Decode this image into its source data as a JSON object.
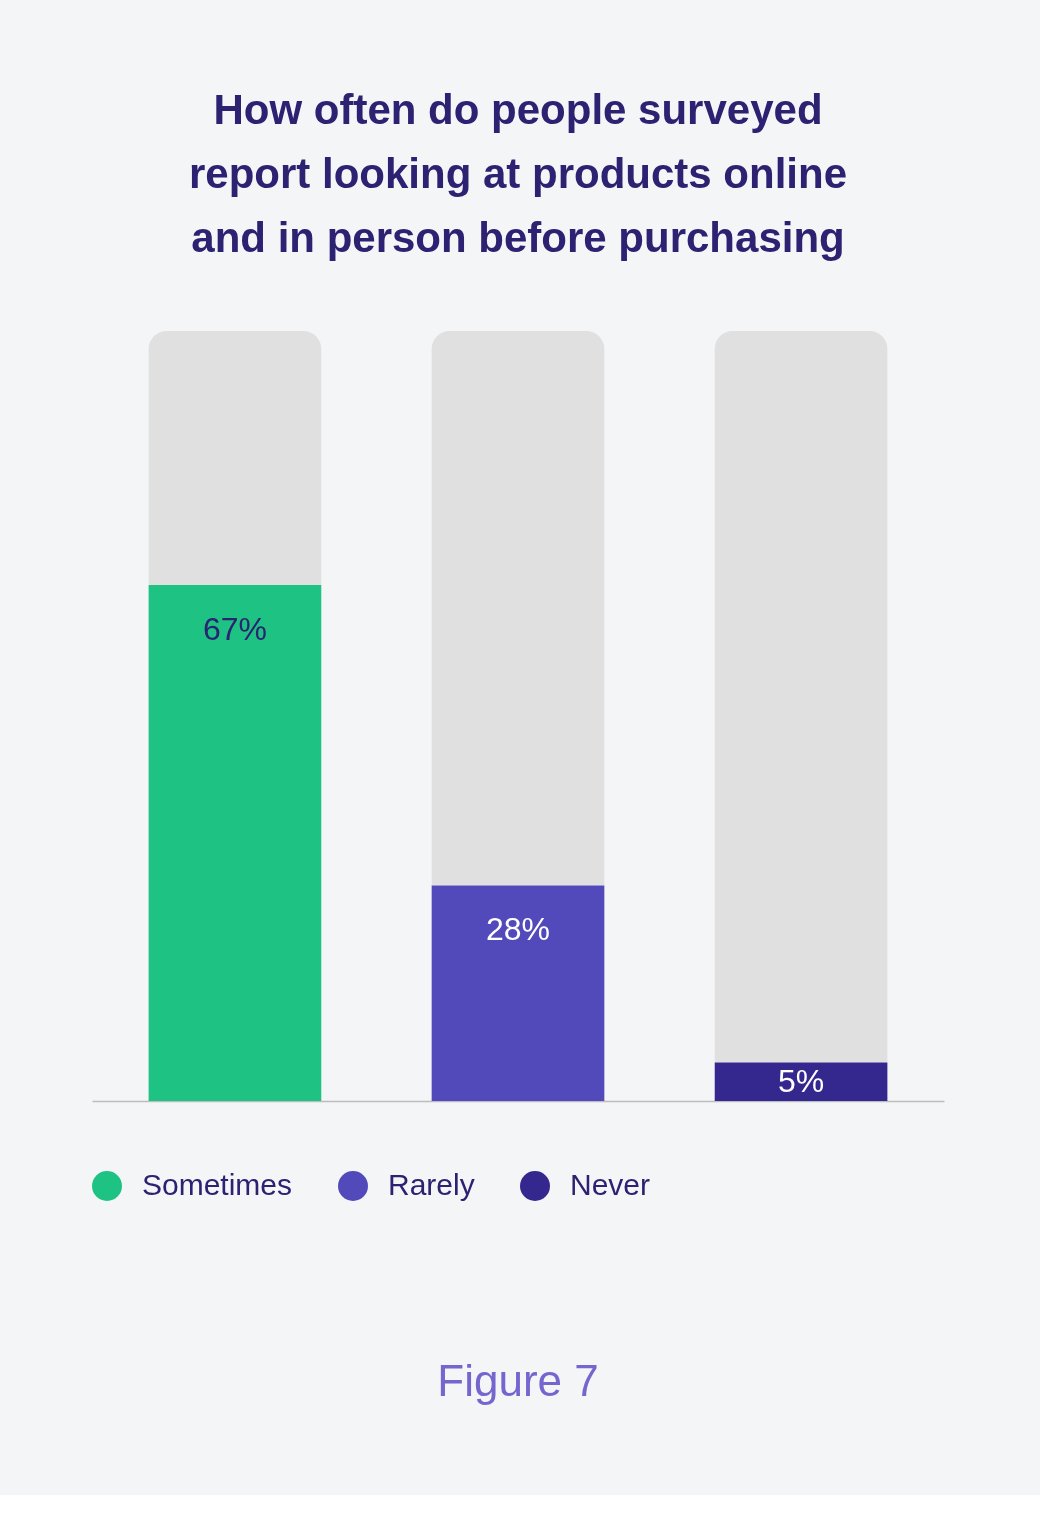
{
  "chart_data": {
    "type": "bar",
    "title": "How often do people surveyed\nreport looking at products online\nand in person before purchasing",
    "categories": [
      null,
      null,
      null
    ],
    "stacked": true,
    "ylim": [
      0,
      100
    ],
    "legend": "bottom",
    "series": [
      {
        "name": "Sometimes",
        "color": "#1ec384",
        "values": [
          67,
          null,
          null
        ],
        "value_labels": [
          "67%",
          null,
          null
        ]
      },
      {
        "name": "Rarely",
        "color": "#5249bb",
        "values": [
          null,
          28,
          null
        ],
        "value_labels": [
          null,
          "28%",
          null
        ]
      },
      {
        "name": "Never",
        "color": "#34288e",
        "values": [
          null,
          null,
          5
        ],
        "value_labels": [
          null,
          null,
          "5%"
        ]
      },
      {
        "color": "#e0e0e0",
        "values": [
          33,
          72,
          95
        ]
      }
    ],
    "annotations": [
      "Figure 7"
    ]
  }
}
